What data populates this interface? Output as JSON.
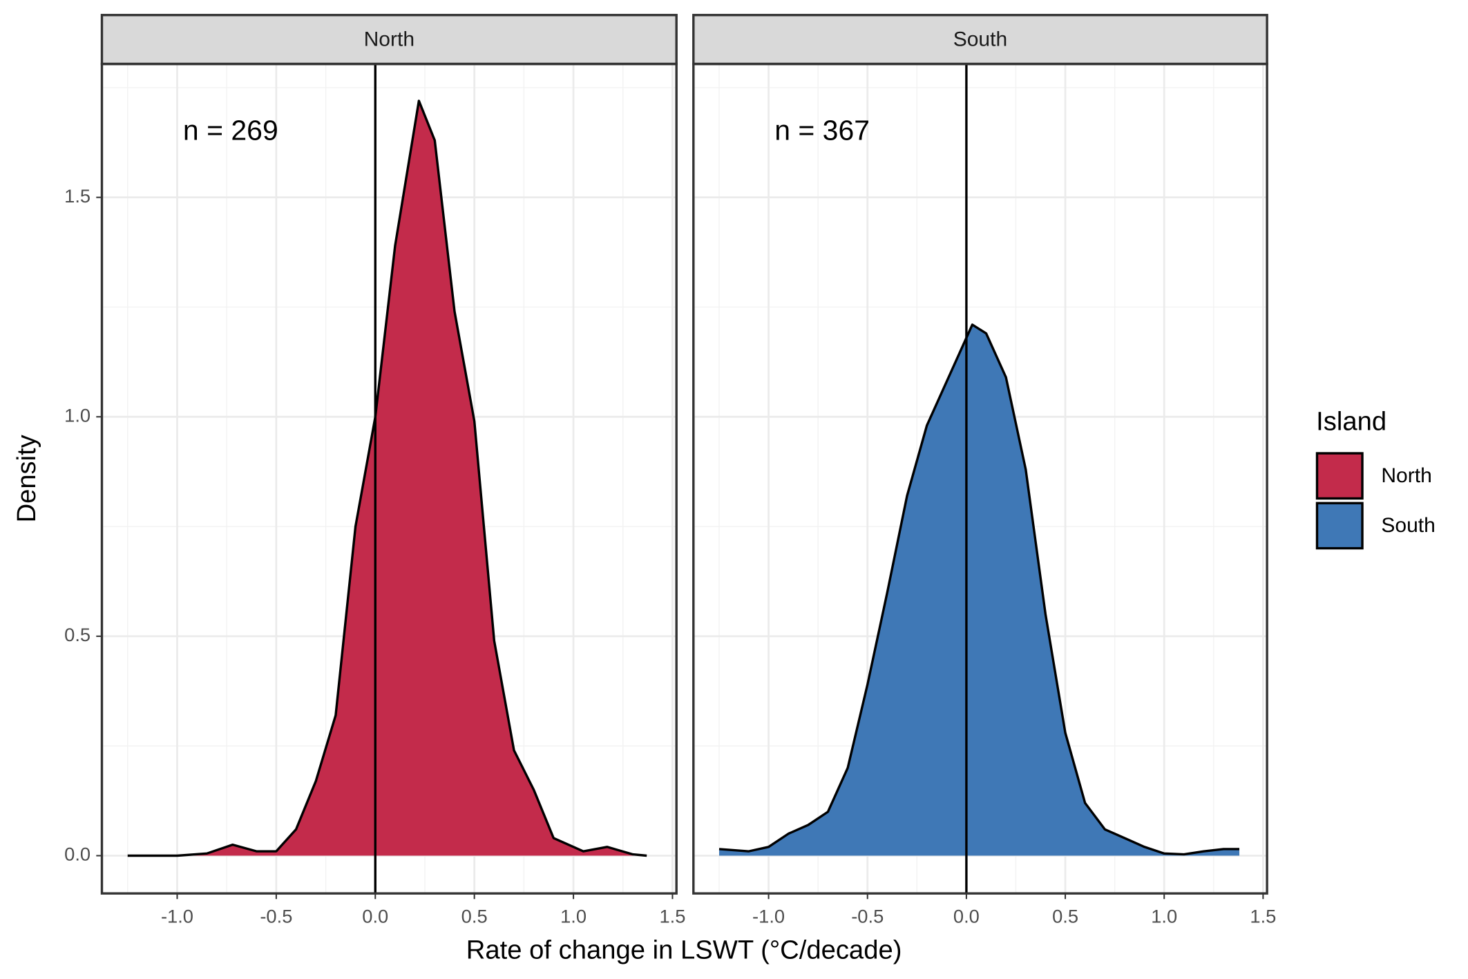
{
  "chart_data": {
    "type": "density",
    "x_label": "Rate of change in LSWT (°C/decade)",
    "y_label": "Density",
    "legend_title": "Island",
    "xlim": [
      -1.38,
      1.52
    ],
    "ylim": [
      -0.086,
      1.804
    ],
    "xticks": [
      {
        "value": -1,
        "label": "-1.0"
      },
      {
        "value": -0.5,
        "label": "-0.5"
      },
      {
        "value": 0,
        "label": "0.0"
      },
      {
        "value": 0.5,
        "label": "0.5"
      },
      {
        "value": 1,
        "label": "1.0"
      },
      {
        "value": 1.5,
        "label": "1.5"
      }
    ],
    "yticks": [
      {
        "value": 0,
        "label": "0.0"
      },
      {
        "value": 0.5,
        "label": "0.5"
      },
      {
        "value": 1,
        "label": "1.0"
      },
      {
        "value": 1.5,
        "label": "1.5"
      }
    ],
    "grid": true,
    "vline": 0,
    "series": [
      {
        "name": "North",
        "color": "#c32b4b",
        "annotation": "n = 269",
        "x": [
          -1.25,
          -1.0,
          -0.85,
          -0.72,
          -0.6,
          -0.5,
          -0.4,
          -0.3,
          -0.2,
          -0.1,
          0.0,
          0.1,
          0.22,
          0.3,
          0.4,
          0.5,
          0.6,
          0.7,
          0.8,
          0.9,
          1.0,
          1.05,
          1.17,
          1.3,
          1.37
        ],
        "values": [
          0,
          0,
          0.005,
          0.025,
          0.01,
          0.01,
          0.06,
          0.17,
          0.32,
          0.75,
          1.0,
          1.39,
          1.72,
          1.63,
          1.24,
          0.99,
          0.49,
          0.24,
          0.15,
          0.04,
          0.02,
          0.01,
          0.02,
          0.003,
          0
        ]
      },
      {
        "name": "South",
        "color": "#3f78b6",
        "annotation": "n = 367",
        "x": [
          -1.25,
          -1.1,
          -1.0,
          -0.9,
          -0.8,
          -0.7,
          -0.6,
          -0.5,
          -0.4,
          -0.3,
          -0.2,
          -0.1,
          0.0,
          0.03,
          0.1,
          0.2,
          0.3,
          0.4,
          0.5,
          0.6,
          0.7,
          0.8,
          0.9,
          1.0,
          1.1,
          1.2,
          1.3,
          1.38
        ],
        "values": [
          0.015,
          0.01,
          0.02,
          0.05,
          0.07,
          0.1,
          0.2,
          0.39,
          0.6,
          0.82,
          0.98,
          1.08,
          1.18,
          1.21,
          1.19,
          1.09,
          0.88,
          0.55,
          0.28,
          0.12,
          0.06,
          0.04,
          0.02,
          0.005,
          0.003,
          0.01,
          0.015,
          0.015
        ]
      }
    ]
  }
}
